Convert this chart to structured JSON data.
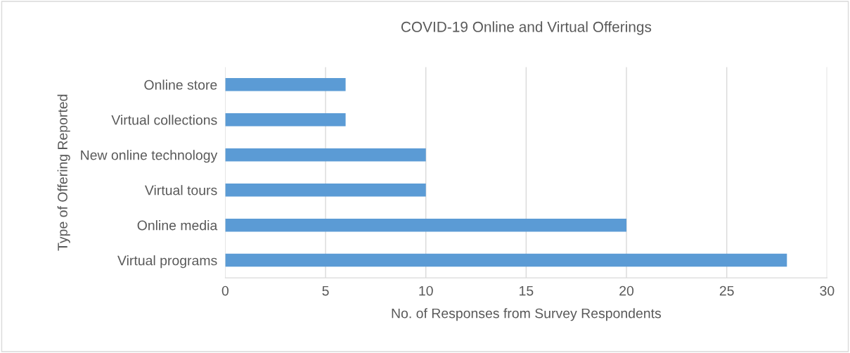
{
  "chart_data": {
    "type": "bar",
    "orientation": "horizontal",
    "title": "COVID-19 Online and Virtual Offerings",
    "xlabel": "No. of Responses from Survey Respondents",
    "ylabel": "Type of Offering Reported",
    "categories": [
      "Online store",
      "Virtual collections",
      "New online technology",
      "Virtual tours",
      "Online media",
      "Virtual programs"
    ],
    "values": [
      6,
      6,
      10,
      10,
      20,
      28
    ],
    "color": "#5b9bd5",
    "xlim": [
      0,
      30
    ],
    "xticks": [
      0,
      5,
      10,
      15,
      20,
      25,
      30
    ],
    "grid": "x",
    "legend": false
  }
}
